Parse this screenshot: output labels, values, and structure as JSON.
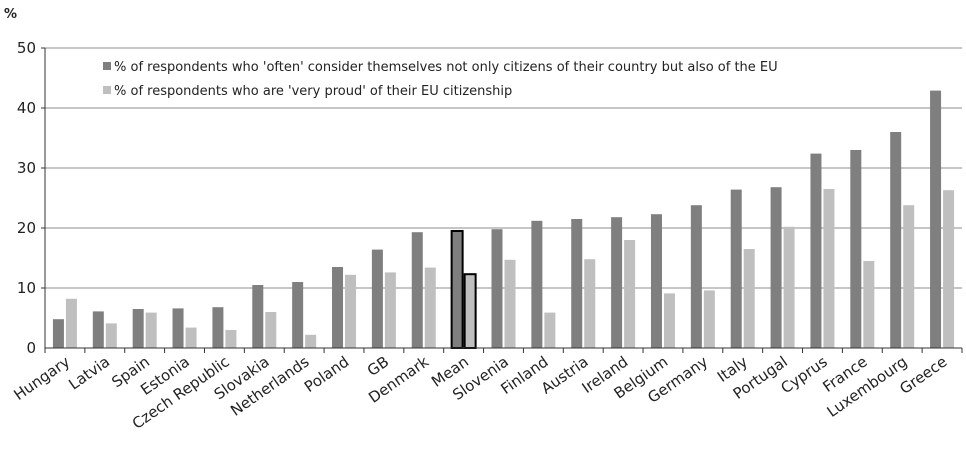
{
  "chart_data": {
    "type": "bar",
    "title": "",
    "xlabel": "",
    "ylabel": "%",
    "ylim": [
      0,
      50
    ],
    "yticks": [
      0,
      10,
      20,
      30,
      40,
      50
    ],
    "grid": true,
    "legend_position": "top-left",
    "categories": [
      "Hungary",
      "Latvia",
      "Spain",
      "Estonia",
      "Czech Republic",
      "Slovakia",
      "Netherlands",
      "Poland",
      "GB",
      "Denmark",
      "Mean",
      "Slovenia",
      "Finland",
      "Austria",
      "Ireland",
      "Belgium",
      "Germany",
      "Italy",
      "Portugal",
      "Cyprus",
      "France",
      "Luxembourg",
      "Greece"
    ],
    "highlight_category": "Mean",
    "series": [
      {
        "name": "% of respondents who 'often' consider themselves  not only citizens of their country but also of the EU",
        "color": "#7f7f7f",
        "values": [
          4.8,
          6.1,
          6.5,
          6.6,
          6.8,
          10.5,
          11.0,
          13.5,
          16.4,
          19.3,
          19.5,
          19.8,
          21.2,
          21.5,
          21.8,
          22.3,
          23.8,
          26.4,
          26.8,
          32.4,
          33.0,
          36.0,
          42.9
        ]
      },
      {
        "name": "% of respondents who are 'very proud' of their EU citizenship",
        "color": "#bfbfbf",
        "values": [
          8.2,
          4.1,
          5.9,
          3.4,
          3.0,
          6.0,
          2.2,
          12.2,
          12.6,
          13.4,
          12.3,
          14.7,
          5.9,
          14.8,
          18.0,
          9.1,
          9.6,
          16.5,
          20.2,
          26.5,
          14.5,
          23.8,
          26.3
        ]
      }
    ]
  }
}
